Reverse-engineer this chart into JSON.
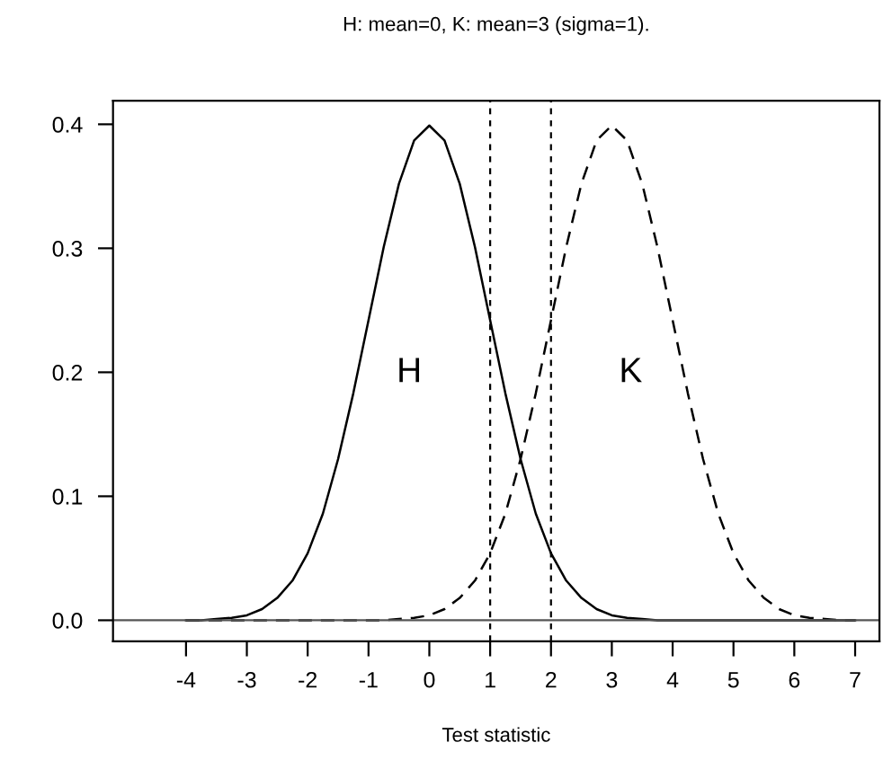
{
  "chart_data": {
    "type": "line",
    "title": "H: mean=0, K: mean=3 (sigma=1).",
    "xlabel": "Test statistic",
    "x": [
      -4,
      -3.75,
      -3.5,
      -3.25,
      -3,
      -2.75,
      -2.5,
      -2.25,
      -2,
      -1.75,
      -1.5,
      -1.25,
      -1,
      -0.75,
      -0.5,
      -0.25,
      0,
      0.25,
      0.5,
      0.75,
      1,
      1.25,
      1.5,
      1.75,
      2,
      2.25,
      2.5,
      2.75,
      3,
      3.25,
      3.5,
      3.75,
      4,
      4.25,
      4.5,
      4.75,
      5,
      5.25,
      5.5,
      5.75,
      6,
      6.25,
      6.5,
      6.75,
      7
    ],
    "series": [
      {
        "name": "H",
        "color": "#000000",
        "line_style": "solid",
        "values": [
          0,
          0,
          0.001,
          0.002,
          0.004,
          0.009,
          0.018,
          0.032,
          0.054,
          0.086,
          0.13,
          0.183,
          0.242,
          0.301,
          0.352,
          0.387,
          0.399,
          0.387,
          0.352,
          0.301,
          0.242,
          0.183,
          0.13,
          0.086,
          0.054,
          0.032,
          0.018,
          0.009,
          0.004,
          0.002,
          0.001,
          0,
          0,
          0,
          0,
          0,
          0,
          0,
          0,
          0,
          0,
          0,
          0,
          0,
          0
        ]
      },
      {
        "name": "K",
        "color": "#000000",
        "line_style": "dashed",
        "values": [
          0,
          0,
          0,
          0,
          0,
          0,
          0,
          0,
          0,
          0,
          0,
          0,
          0,
          0,
          0.001,
          0.002,
          0.004,
          0.009,
          0.018,
          0.032,
          0.054,
          0.086,
          0.13,
          0.183,
          0.242,
          0.301,
          0.352,
          0.387,
          0.399,
          0.387,
          0.352,
          0.301,
          0.242,
          0.183,
          0.13,
          0.086,
          0.054,
          0.032,
          0.018,
          0.009,
          0.004,
          0.002,
          0.001,
          0,
          0
        ]
      }
    ],
    "xlim": [
      -5.2,
      7.4
    ],
    "xticks": [
      -4,
      -3,
      -2,
      -1,
      0,
      1,
      2,
      3,
      4,
      5,
      6,
      7
    ],
    "ylim": [
      -0.017,
      0.419
    ],
    "yticks": [
      {
        "value": 0,
        "label": "0.0"
      },
      {
        "value": 0.1,
        "label": "0.1"
      },
      {
        "value": 0.2,
        "label": "0.2"
      },
      {
        "value": 0.3,
        "label": "0.3"
      },
      {
        "value": 0.4,
        "label": "0.4"
      }
    ],
    "ref_lines": [
      {
        "axis": "x",
        "value": 1,
        "line_style": "dashed",
        "color": "#000000"
      },
      {
        "axis": "x",
        "value": 2,
        "line_style": "dashed",
        "color": "#000000"
      },
      {
        "axis": "y",
        "value": 0,
        "line_style": "solid",
        "color": "#555555"
      }
    ],
    "grid": false,
    "legend": false
  }
}
